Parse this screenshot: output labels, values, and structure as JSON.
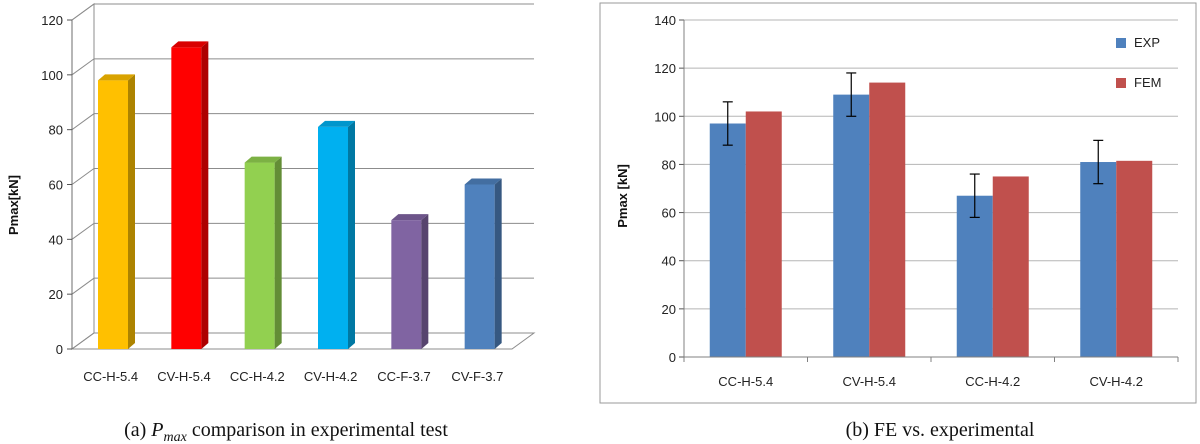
{
  "chart_data": [
    {
      "type": "bar",
      "style": "3d",
      "categories": [
        "CC-H-5.4",
        "CV-H-5.4",
        "CC-H-4.2",
        "CV-H-4.2",
        "CC-F-3.7",
        "CV-F-3.7"
      ],
      "values": [
        98,
        110,
        68,
        81,
        47,
        60
      ],
      "colors": [
        "#FFC000",
        "#FF0000",
        "#92D050",
        "#00B0F0",
        "#8064A2",
        "#4F81BD"
      ],
      "ylabel": "Pmax[kN]",
      "ylim": [
        0,
        120
      ],
      "yticks": [
        0,
        20,
        40,
        60,
        80,
        100,
        120
      ],
      "grid": true,
      "caption_prefix": "(a) ",
      "caption_symbol": "P",
      "caption_sub": "max",
      "caption_suffix": " comparison  in experimental test"
    },
    {
      "type": "bar",
      "categories": [
        "CC-H-5.4",
        "CV-H-5.4",
        "CC-H-4.2",
        "CV-H-4.2"
      ],
      "series": [
        {
          "name": "EXP",
          "values": [
            97,
            109,
            67,
            81
          ],
          "error": [
            9,
            9,
            9,
            9
          ],
          "color": "#4F81BD"
        },
        {
          "name": "FEM",
          "values": [
            102,
            114,
            75,
            81.5
          ],
          "color": "#C0504D"
        }
      ],
      "ylabel": "Pmax [kN]",
      "ylim": [
        0,
        140
      ],
      "yticks": [
        0,
        20,
        40,
        60,
        80,
        100,
        120,
        140
      ],
      "grid": true,
      "legend": "top-right",
      "caption": "(b) FE vs. experimental"
    }
  ]
}
